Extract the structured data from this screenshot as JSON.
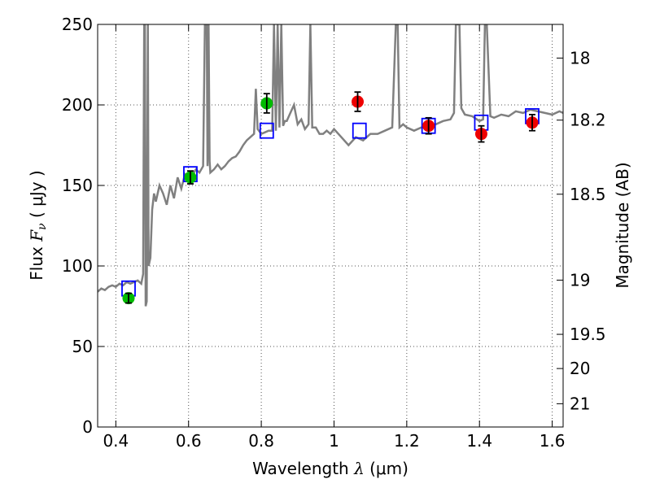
{
  "chart_data": {
    "type": "scatter",
    "title": "",
    "xlabel": {
      "prefix": "Wavelength  ",
      "symbol": "λ",
      "unit": " (μm)"
    },
    "ylabel": {
      "prefix": "Flux  ",
      "symbol": "F",
      "subscript": "ν",
      "unit": "  ( μJy )"
    },
    "ylabel_right": "Magnitude (AB)",
    "xlim": [
      0.35,
      1.63
    ],
    "ylim": [
      0,
      250
    ],
    "grid": true,
    "x_ticks": [
      {
        "value": 0.4,
        "label": "0.4"
      },
      {
        "value": 0.6,
        "label": "0.6"
      },
      {
        "value": 0.8,
        "label": "0.8"
      },
      {
        "value": 1.0,
        "label": "1"
      },
      {
        "value": 1.2,
        "label": "1.2"
      },
      {
        "value": 1.4,
        "label": "1.4"
      },
      {
        "value": 1.6,
        "label": "1.6"
      }
    ],
    "y_ticks": [
      {
        "value": 0,
        "label": "0"
      },
      {
        "value": 50,
        "label": "50"
      },
      {
        "value": 100,
        "label": "100"
      },
      {
        "value": 150,
        "label": "150"
      },
      {
        "value": 200,
        "label": "200"
      },
      {
        "value": 250,
        "label": "250"
      }
    ],
    "right_ticks": [
      {
        "value": 18,
        "label": "18"
      },
      {
        "value": 18.2,
        "label": "18.2"
      },
      {
        "value": 18.5,
        "label": "18.5"
      },
      {
        "value": 19,
        "label": "19"
      },
      {
        "value": 19.5,
        "label": "19.5"
      },
      {
        "value": 20,
        "label": "20"
      },
      {
        "value": 21,
        "label": "21"
      }
    ],
    "colors": {
      "spectrum": "#808080",
      "model_box": "#0000ff",
      "optical_points": "#00bb00",
      "nir_points": "#ee0000",
      "error_bar": "#000000",
      "grid": "#555555"
    },
    "series": [
      {
        "kind": "spectrum",
        "x": [
          0.35,
          0.36,
          0.37,
          0.38,
          0.39,
          0.4,
          0.41,
          0.42,
          0.43,
          0.44,
          0.45,
          0.46,
          0.47,
          0.475,
          0.478,
          0.48,
          0.482,
          0.485,
          0.488,
          0.49,
          0.495,
          0.5,
          0.505,
          0.51,
          0.52,
          0.53,
          0.54,
          0.55,
          0.56,
          0.57,
          0.58,
          0.59,
          0.6,
          0.61,
          0.62,
          0.63,
          0.64,
          0.645,
          0.65,
          0.652,
          0.655,
          0.658,
          0.66,
          0.67,
          0.68,
          0.69,
          0.7,
          0.71,
          0.72,
          0.73,
          0.74,
          0.75,
          0.76,
          0.77,
          0.78,
          0.785,
          0.79,
          0.8,
          0.81,
          0.82,
          0.83,
          0.835,
          0.84,
          0.845,
          0.85,
          0.855,
          0.86,
          0.865,
          0.87,
          0.88,
          0.89,
          0.9,
          0.91,
          0.92,
          0.93,
          0.935,
          0.94,
          0.95,
          0.96,
          0.97,
          0.98,
          0.99,
          1.0,
          1.02,
          1.04,
          1.06,
          1.08,
          1.1,
          1.12,
          1.14,
          1.16,
          1.17,
          1.175,
          1.18,
          1.19,
          1.2,
          1.22,
          1.24,
          1.26,
          1.28,
          1.3,
          1.32,
          1.33,
          1.335,
          1.34,
          1.345,
          1.35,
          1.36,
          1.38,
          1.4,
          1.41,
          1.415,
          1.42,
          1.43,
          1.44,
          1.46,
          1.48,
          1.5,
          1.52,
          1.54,
          1.56,
          1.58,
          1.6,
          1.62,
          1.63
        ],
        "y": [
          84,
          86,
          85,
          87,
          88,
          87,
          89,
          88,
          90,
          89,
          90,
          91,
          89,
          95,
          250,
          250,
          75,
          78,
          250,
          100,
          105,
          135,
          145,
          140,
          150,
          145,
          138,
          150,
          142,
          155,
          148,
          157,
          155,
          156,
          160,
          158,
          162,
          250,
          250,
          162,
          250,
          165,
          158,
          160,
          163,
          160,
          162,
          165,
          167,
          168,
          171,
          175,
          178,
          180,
          182,
          210,
          185,
          182,
          183,
          184,
          184,
          250,
          184,
          250,
          186,
          250,
          187,
          190,
          190,
          195,
          200,
          188,
          191,
          185,
          188,
          250,
          186,
          186,
          182,
          182,
          184,
          182,
          185,
          180,
          175,
          180,
          178,
          182,
          182,
          184,
          186,
          250,
          250,
          186,
          188,
          186,
          184,
          186,
          186,
          188,
          190,
          191,
          195,
          250,
          250,
          250,
          198,
          194,
          193,
          190,
          191,
          250,
          250,
          193,
          192,
          194,
          193,
          196,
          195,
          197,
          196,
          195,
          194,
          196,
          195
        ]
      },
      {
        "kind": "model_boxes",
        "x": [
          0.435,
          0.605,
          0.815,
          1.07,
          1.26,
          1.405,
          1.545
        ],
        "y": [
          86,
          157,
          184,
          184,
          187,
          189,
          193
        ]
      },
      {
        "kind": "observed_optical",
        "x": [
          0.435,
          0.605,
          0.815
        ],
        "y": [
          80,
          155,
          201
        ],
        "err": [
          3,
          4,
          6
        ]
      },
      {
        "kind": "observed_nir",
        "x": [
          1.065,
          1.26,
          1.405,
          1.545
        ],
        "y": [
          202,
          187,
          182,
          189
        ],
        "err": [
          6,
          5,
          5,
          5
        ]
      }
    ]
  }
}
